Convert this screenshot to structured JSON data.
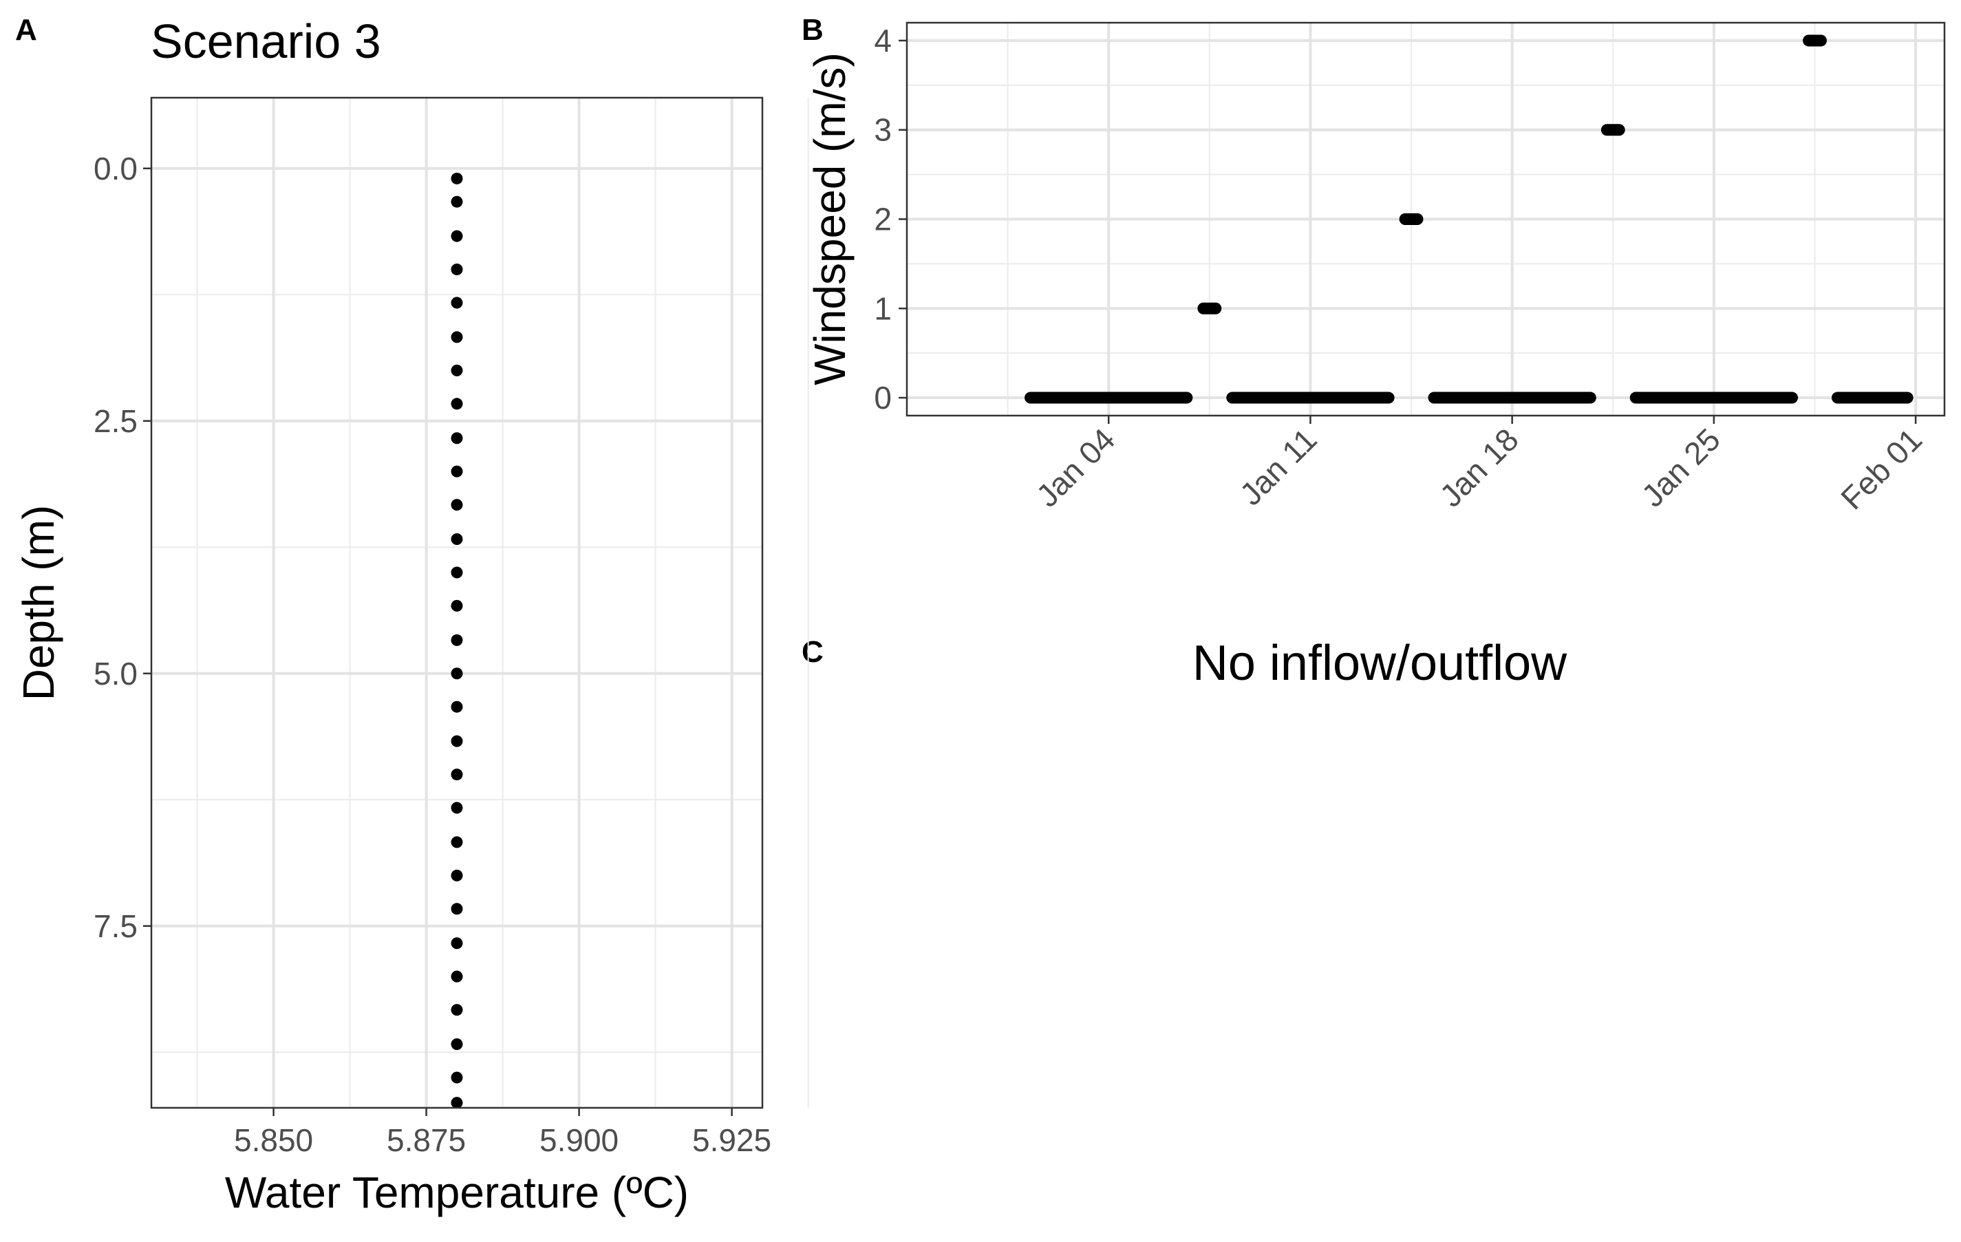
{
  "panels": {
    "a": {
      "letter": "A"
    },
    "b": {
      "letter": "B"
    },
    "c": {
      "letter": "C",
      "note": "No inflow/outflow"
    }
  },
  "chart_data": [
    {
      "panel": "A",
      "type": "scatter",
      "title": "Scenario 3",
      "xlabel": "Water Temperature (ºC)",
      "ylabel": "Depth (m)",
      "xlim": [
        5.83,
        5.93
      ],
      "ylim": [
        9.3,
        -0.7
      ],
      "y_reversed": true,
      "x_ticks": [
        5.85,
        5.875,
        5.9,
        5.925
      ],
      "x_tick_labels": [
        "5.850",
        "5.875",
        "5.900",
        "5.925"
      ],
      "y_ticks": [
        0,
        2.5,
        5,
        7.5
      ],
      "y_tick_labels": [
        "0.0",
        "2.5",
        "5.0",
        "7.5"
      ],
      "grid": true,
      "legend": "none",
      "x": [
        5.88,
        5.88,
        5.88,
        5.88,
        5.88,
        5.88,
        5.88,
        5.88,
        5.88,
        5.88,
        5.88,
        5.88,
        5.88,
        5.88,
        5.88,
        5.88,
        5.88,
        5.88,
        5.88,
        5.88,
        5.88,
        5.88,
        5.88,
        5.88,
        5.88,
        5.88,
        5.88,
        5.88,
        5.88
      ],
      "y": [
        0.1,
        0.33,
        0.67,
        1.0,
        1.33,
        1.67,
        2.0,
        2.33,
        2.67,
        3.0,
        3.33,
        3.67,
        4.0,
        4.33,
        4.67,
        5.0,
        5.33,
        5.67,
        6.0,
        6.33,
        6.67,
        7.0,
        7.33,
        7.67,
        8.0,
        8.33,
        8.67,
        9.0,
        9.25
      ]
    },
    {
      "panel": "B",
      "type": "scatter",
      "title": "",
      "xlabel": "",
      "ylabel": "Windspeed (m/s)",
      "xlim": [
        "2020-12-28",
        "2021-02-02"
      ],
      "ylim": [
        -0.2,
        4.2
      ],
      "x_ticks": [
        "2021-01-04",
        "2021-01-11",
        "2021-01-18",
        "2021-01-25",
        "2021-02-01"
      ],
      "x_tick_labels": [
        "Jan 04",
        "Jan 11",
        "Jan 18",
        "Jan 25",
        "Feb 01"
      ],
      "y_ticks": [
        0,
        1,
        2,
        3,
        4
      ],
      "y_tick_labels": [
        "0",
        "1",
        "2",
        "3",
        "4"
      ],
      "grid": true,
      "legend": "none",
      "segments": [
        {
          "start": "2021-01-01",
          "end": "2021-01-07",
          "value": 0
        },
        {
          "start": "2021-01-07",
          "end": "2021-01-08",
          "value": 1
        },
        {
          "start": "2021-01-08",
          "end": "2021-01-14",
          "value": 0
        },
        {
          "start": "2021-01-14",
          "end": "2021-01-15",
          "value": 2
        },
        {
          "start": "2021-01-15",
          "end": "2021-01-21",
          "value": 0
        },
        {
          "start": "2021-01-21",
          "end": "2021-01-22",
          "value": 3
        },
        {
          "start": "2021-01-22",
          "end": "2021-01-28",
          "value": 0
        },
        {
          "start": "2021-01-28",
          "end": "2021-01-29",
          "value": 4
        },
        {
          "start": "2021-01-29",
          "end": "2021-02-01",
          "value": 0
        }
      ]
    }
  ]
}
